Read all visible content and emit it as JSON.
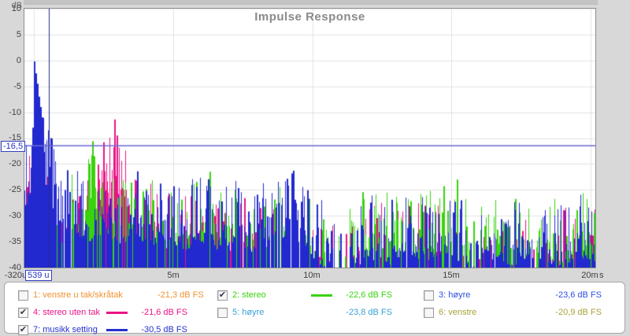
{
  "chart_data": {
    "type": "line",
    "subtype": "impulse-response-overlay-noise",
    "title": "Impulse Response",
    "ylabel": "dB",
    "xunit": "s",
    "xlim_ms": [
      -0.34,
      20.2
    ],
    "ylim_db": [
      -40,
      10
    ],
    "y_ticks": [
      10,
      5,
      0,
      -5,
      -10,
      -15,
      -20,
      -25,
      -30,
      -35,
      -40
    ],
    "y_tick_labels": [
      "10",
      "5",
      "0",
      "-5",
      "-10",
      "-15",
      "-20",
      "-25",
      "-30",
      "-35",
      "-40"
    ],
    "x_tick_labels": [
      "-320u",
      "5m",
      "10m",
      "15m",
      "20m"
    ],
    "x_grid_ms": [
      0,
      5,
      10,
      15,
      20
    ],
    "grid_color": "#e2e2e2",
    "cursor": {
      "x_label": "539 u",
      "x_ms": 0.539,
      "y_label": "-16,5",
      "y_db": -16.5,
      "h_line_color": "#6b6bd4",
      "v_line_color": "#2a2a96"
    },
    "seed": 1337,
    "series": [
      {
        "name": "4: stereo uten tak",
        "color": "#ea1487",
        "peak_db_fs": "-21,6 dB FS",
        "density": 0.45,
        "spread": 12,
        "envelope": [
          [
            -0.34,
            -18
          ],
          [
            -0.1,
            -16
          ],
          [
            0.05,
            -15
          ],
          [
            0.3,
            -17
          ],
          [
            0.7,
            -22
          ],
          [
            1.2,
            -26
          ],
          [
            1.8,
            -21
          ],
          [
            2.4,
            -16
          ],
          [
            2.9,
            -11.4
          ],
          [
            3.2,
            -17
          ],
          [
            3.8,
            -20
          ],
          [
            4.3,
            -23
          ],
          [
            5,
            -26
          ],
          [
            5.8,
            -24
          ],
          [
            6.5,
            -27
          ],
          [
            7.2,
            -25
          ],
          [
            8,
            -27
          ],
          [
            8.8,
            -25
          ],
          [
            9.5,
            -27
          ],
          [
            10.2,
            -28
          ],
          [
            11,
            -31
          ],
          [
            11.8,
            -28
          ],
          [
            12.5,
            -27
          ],
          [
            13.3,
            -28
          ],
          [
            14,
            -27
          ],
          [
            15,
            -28
          ],
          [
            16,
            -27
          ],
          [
            17,
            -28
          ],
          [
            18,
            -29
          ],
          [
            19,
            -28
          ],
          [
            20.3,
            -28
          ]
        ],
        "spikes": [
          [
            2.88,
            -11.4
          ],
          [
            2.96,
            -14.5
          ],
          [
            2.5,
            -15.8
          ],
          [
            0.03,
            -15.5
          ]
        ]
      },
      {
        "name": "2: stereo",
        "color": "#38d30c",
        "peak_db_fs": "-22,6 dB FS",
        "density": 0.5,
        "spread": 12,
        "envelope": [
          [
            -0.34,
            -34
          ],
          [
            0,
            -29
          ],
          [
            0.8,
            -26
          ],
          [
            1.6,
            -20
          ],
          [
            2.1,
            -15.5
          ],
          [
            2.5,
            -21
          ],
          [
            3,
            -20
          ],
          [
            3.6,
            -23
          ],
          [
            4.2,
            -21
          ],
          [
            5,
            -24
          ],
          [
            5.6,
            -22
          ],
          [
            6.3,
            -21
          ],
          [
            7,
            -24
          ],
          [
            7.6,
            -23
          ],
          [
            8.2,
            -25
          ],
          [
            8.8,
            -22
          ],
          [
            9.5,
            -24
          ],
          [
            10.3,
            -27
          ],
          [
            11,
            -29
          ],
          [
            11.8,
            -24
          ],
          [
            12.5,
            -25
          ],
          [
            13.2,
            -23
          ],
          [
            14,
            -25
          ],
          [
            14.6,
            -24
          ],
          [
            15.2,
            -23
          ],
          [
            16,
            -26
          ],
          [
            16.8,
            -24
          ],
          [
            17.5,
            -26
          ],
          [
            18.2,
            -25
          ],
          [
            19,
            -27
          ],
          [
            19.6,
            -25
          ],
          [
            20.3,
            -26
          ]
        ],
        "spikes": [
          [
            2.08,
            -15.6
          ],
          [
            2.16,
            -18.5
          ],
          [
            6.3,
            -21.5
          ],
          [
            15.2,
            -23
          ]
        ]
      },
      {
        "name": "7: musikk setting",
        "color": "#2229cf",
        "peak_db_fs": "-30,5 dB FS",
        "density": 0.8,
        "spread": 13,
        "envelope": [
          [
            -0.34,
            -16
          ],
          [
            -0.12,
            -13
          ],
          [
            0,
            -0.2
          ],
          [
            0.15,
            -6
          ],
          [
            0.35,
            -11
          ],
          [
            0.55,
            -13
          ],
          [
            0.8,
            -18
          ],
          [
            1.2,
            -20
          ],
          [
            2,
            -22
          ],
          [
            2.6,
            -20
          ],
          [
            3,
            -23
          ],
          [
            3.6,
            -21
          ],
          [
            4.2,
            -23
          ],
          [
            4.7,
            -21
          ],
          [
            5.3,
            -24
          ],
          [
            6,
            -22
          ],
          [
            6.6,
            -24
          ],
          [
            7.2,
            -22
          ],
          [
            7.8,
            -24
          ],
          [
            8.4,
            -22
          ],
          [
            9.3,
            -21
          ],
          [
            10,
            -25
          ],
          [
            10.8,
            -29
          ],
          [
            11.4,
            -28
          ],
          [
            12,
            -25
          ],
          [
            12.7,
            -27
          ],
          [
            13.3,
            -24
          ],
          [
            14,
            -26
          ],
          [
            14.7,
            -24
          ],
          [
            15.3,
            -26
          ],
          [
            16,
            -27
          ],
          [
            16.6,
            -25
          ],
          [
            17.2,
            -27
          ],
          [
            17.8,
            -25
          ],
          [
            18.4,
            -26
          ],
          [
            19,
            -27
          ],
          [
            19.5,
            -25
          ],
          [
            20.3,
            -26
          ]
        ],
        "spikes": [
          [
            0,
            -0.2
          ],
          [
            0.05,
            -2.5
          ],
          [
            0.1,
            -4.5
          ],
          [
            0.16,
            -7
          ],
          [
            0.22,
            -9
          ],
          [
            0.28,
            -11
          ],
          [
            -0.07,
            -13
          ],
          [
            0.52,
            -13.5
          ],
          [
            0.6,
            -15
          ],
          [
            9.3,
            -21.3
          ]
        ]
      }
    ]
  },
  "legend": {
    "items": [
      {
        "label": "1: venstre u tak/skråtak",
        "value": "-21,3 dB FS",
        "color": "#f0922f",
        "checked": false
      },
      {
        "label": "2: stereo",
        "value": "-22,6 dB FS",
        "color": "#38d30c",
        "checked": true
      },
      {
        "label": "3: høyre",
        "value": "-23,6 dB FS",
        "color": "#2d4fe0",
        "checked": false
      },
      {
        "label": "4: stereo uten tak",
        "value": "-21,6 dB FS",
        "color": "#ea1487",
        "checked": true
      },
      {
        "label": "5: høyre",
        "value": "-23,8 dB FS",
        "color": "#3a9fd8",
        "checked": false
      },
      {
        "label": "6: venstre",
        "value": "-20,9 dB FS",
        "color": "#aaa23a",
        "checked": false
      },
      {
        "label": "7: musikk setting",
        "value": "-30,5 dB FS",
        "color": "#2531cf",
        "checked": true
      }
    ]
  }
}
